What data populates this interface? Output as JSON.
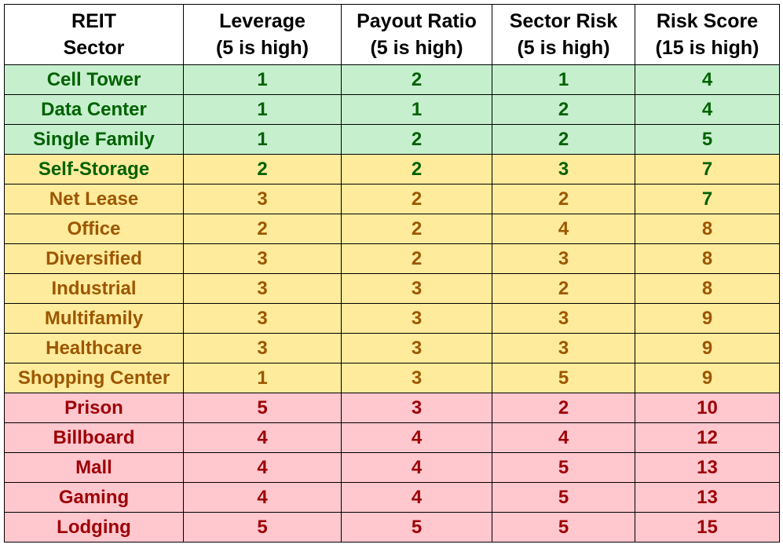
{
  "table": {
    "headers": [
      {
        "line1": "REIT",
        "line2": "Sector"
      },
      {
        "line1": "Leverage",
        "line2": "(5 is high)"
      },
      {
        "line1": "Payout Ratio",
        "line2": "(5 is high)"
      },
      {
        "line1": "Sector Risk",
        "line2": "(5 is high)"
      },
      {
        "line1": "Risk Score",
        "line2": "(15 is high)"
      }
    ],
    "rows": [
      {
        "sector": "Cell Tower",
        "leverage": "1",
        "payout": "2",
        "risk": "1",
        "score": "4",
        "band": "green"
      },
      {
        "sector": "Data Center",
        "leverage": "1",
        "payout": "1",
        "risk": "2",
        "score": "4",
        "band": "green"
      },
      {
        "sector": "Single Family",
        "leverage": "1",
        "payout": "2",
        "risk": "2",
        "score": "5",
        "band": "green"
      },
      {
        "sector": "Self-Storage",
        "leverage": "2",
        "payout": "2",
        "risk": "3",
        "score": "7",
        "band": "yellow"
      },
      {
        "sector": "Net Lease",
        "leverage": "3",
        "payout": "2",
        "risk": "2",
        "score": "7",
        "band": "yellow"
      },
      {
        "sector": "Office",
        "leverage": "2",
        "payout": "2",
        "risk": "4",
        "score": "8",
        "band": "yellow"
      },
      {
        "sector": "Diversified",
        "leverage": "3",
        "payout": "2",
        "risk": "3",
        "score": "8",
        "band": "yellow"
      },
      {
        "sector": "Industrial",
        "leverage": "3",
        "payout": "3",
        "risk": "2",
        "score": "8",
        "band": "yellow"
      },
      {
        "sector": "Multifamily",
        "leverage": "3",
        "payout": "3",
        "risk": "3",
        "score": "9",
        "band": "yellow"
      },
      {
        "sector": "Healthcare",
        "leverage": "3",
        "payout": "3",
        "risk": "3",
        "score": "9",
        "band": "yellow"
      },
      {
        "sector": "Shopping Center",
        "leverage": "1",
        "payout": "3",
        "risk": "5",
        "score": "9",
        "band": "yellow"
      },
      {
        "sector": "Prison",
        "leverage": "5",
        "payout": "3",
        "risk": "2",
        "score": "10",
        "band": "red"
      },
      {
        "sector": "Billboard",
        "leverage": "4",
        "payout": "4",
        "risk": "4",
        "score": "12",
        "band": "red"
      },
      {
        "sector": "Mall",
        "leverage": "4",
        "payout": "4",
        "risk": "5",
        "score": "13",
        "band": "red"
      },
      {
        "sector": "Gaming",
        "leverage": "4",
        "payout": "4",
        "risk": "5",
        "score": "13",
        "band": "red"
      },
      {
        "sector": "Lodging",
        "leverage": "5",
        "payout": "5",
        "risk": "5",
        "score": "15",
        "band": "red"
      }
    ]
  },
  "colors": {
    "green_fill": "#c6efce",
    "green_text": "#006100",
    "yellow_fill": "#ffeb9c",
    "yellow_text": "#9c5700",
    "red_fill": "#ffc7ce",
    "red_text": "#9c0006"
  }
}
